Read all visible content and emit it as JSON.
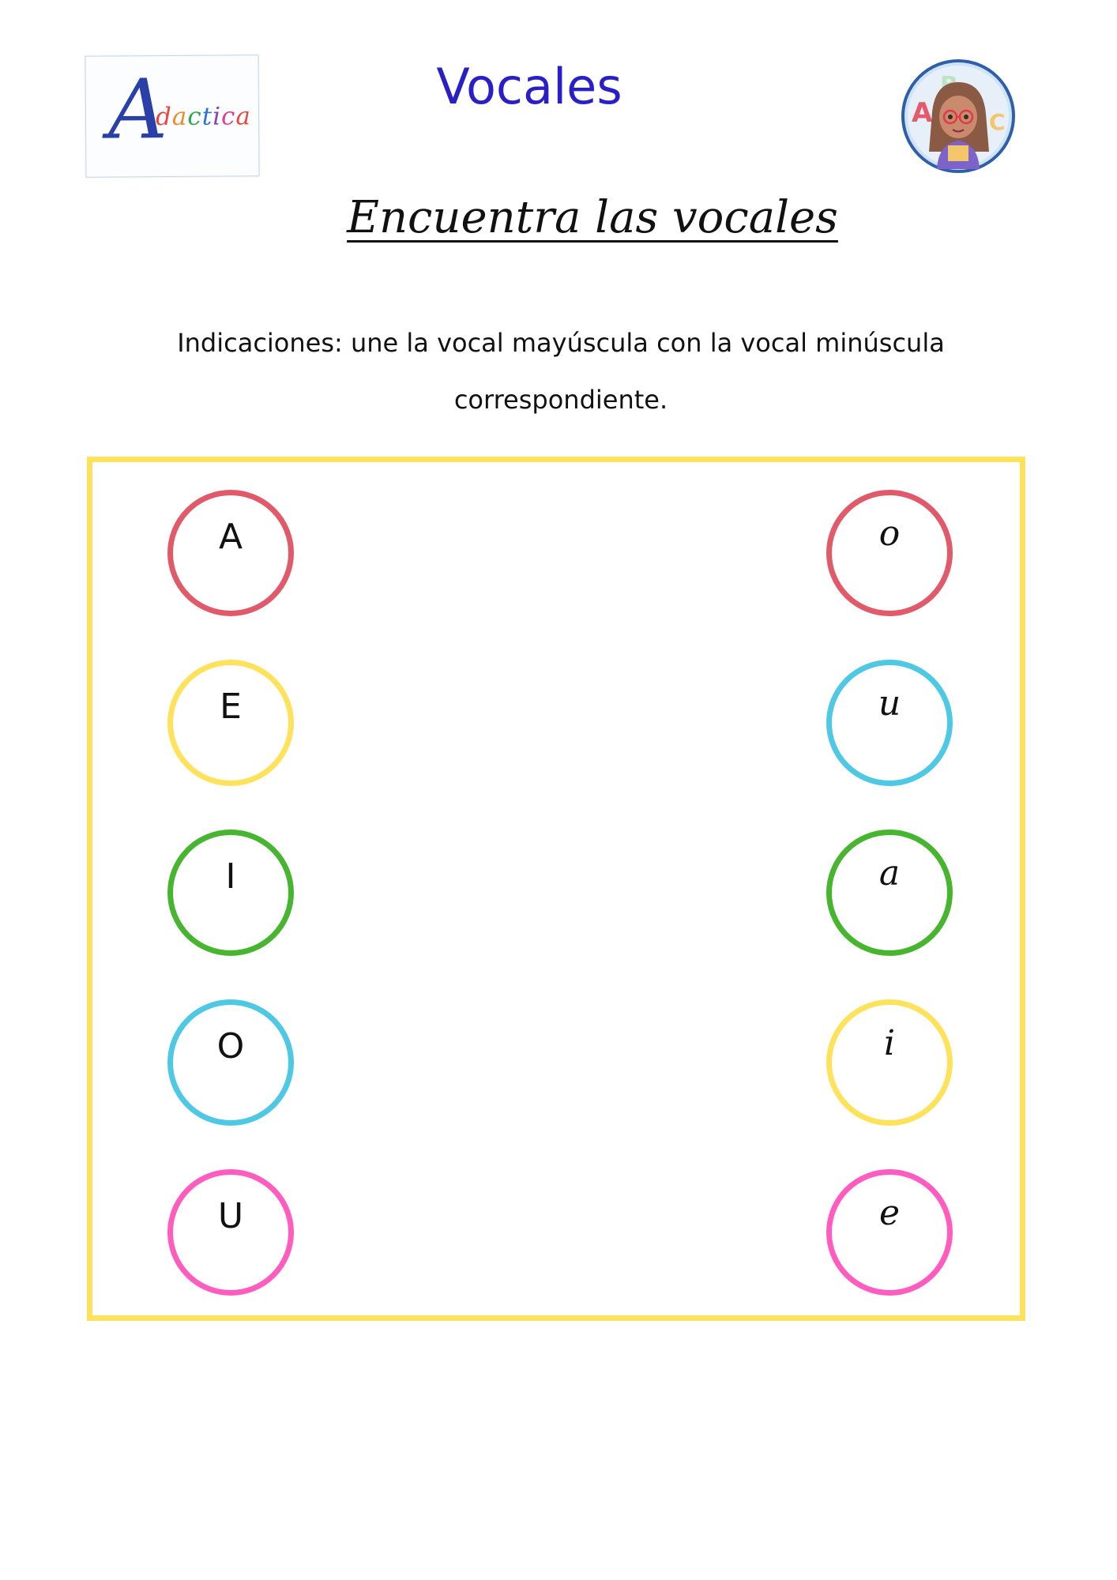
{
  "header": {
    "logo": {
      "letter": "A",
      "rest": "dactica",
      "letter_color": "#2b3fa8",
      "rest_colors": [
        "#e8473f",
        "#f08a2a",
        "#2ea84a",
        "#2f73d6",
        "#8b3fc4",
        "#e23c8e",
        "#e8473f"
      ]
    },
    "title": "Vocales",
    "avatar_icon": "girl-with-abc-avatar"
  },
  "subtitle": "Encuentra las vocales",
  "instructions": "Indicaciones: une la vocal mayúscula con la vocal minúscula correspondiente.",
  "frame_color": "#ffe25c",
  "uppercase": [
    {
      "letter": "A",
      "color": "#e05a6a"
    },
    {
      "letter": "E",
      "color": "#ffe25c"
    },
    {
      "letter": "I",
      "color": "#47b52f"
    },
    {
      "letter": "O",
      "color": "#4fc8e4"
    },
    {
      "letter": "U",
      "color": "#ff5cc0"
    }
  ],
  "lowercase": [
    {
      "letter": "o",
      "color": "#e05a6a"
    },
    {
      "letter": "u",
      "color": "#4fc8e4"
    },
    {
      "letter": "a",
      "color": "#47b52f"
    },
    {
      "letter": "i",
      "color": "#ffe25c"
    },
    {
      "letter": "e",
      "color": "#ff5cc0"
    }
  ]
}
